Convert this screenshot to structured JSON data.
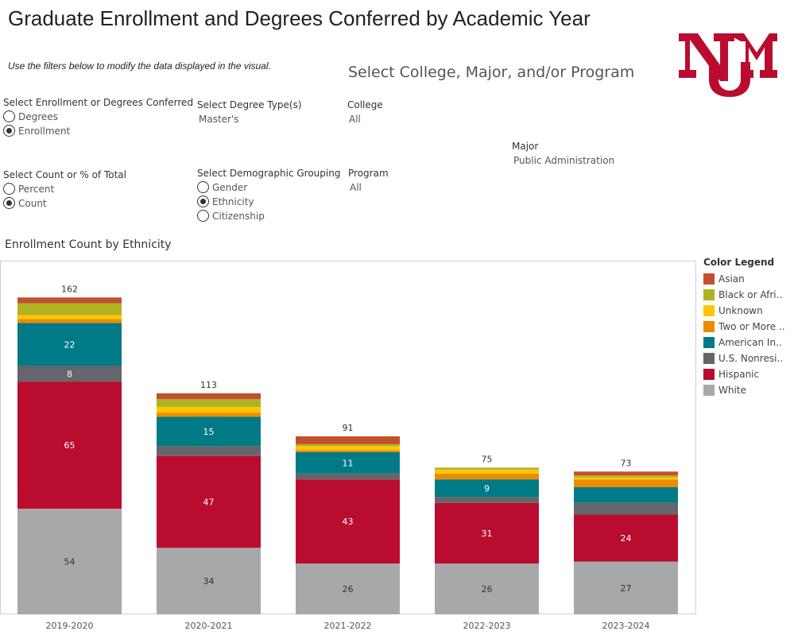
{
  "header": {
    "title": "Graduate Enrollment and Degrees Conferred by Academic Year",
    "instructions": "Use the filters below to modify the data displayed in the visual.",
    "section_heading": "Select College, Major, and/or Program",
    "logo_text": "UNM",
    "brand_color": "#ba0c2f"
  },
  "filters": {
    "enroll_or_degrees": {
      "label": "Select Enrollment or Degrees Conferred",
      "options": [
        {
          "label": "Degrees",
          "selected": false
        },
        {
          "label": "Enrollment",
          "selected": true
        }
      ]
    },
    "count_or_percent": {
      "label": "Select Count or % of Total",
      "options": [
        {
          "label": "Percent",
          "selected": false
        },
        {
          "label": "Count",
          "selected": true
        }
      ]
    },
    "degree_type": {
      "label": "Select Degree Type(s)",
      "value": "Master's"
    },
    "demographic": {
      "label": "Select Demographic Grouping",
      "options": [
        {
          "label": "Gender",
          "selected": false
        },
        {
          "label": "Ethnicity",
          "selected": true
        },
        {
          "label": "Citizenship",
          "selected": false
        }
      ]
    },
    "college": {
      "label": "College",
      "value": "All"
    },
    "major": {
      "label": "Major",
      "value": "Public Administration"
    },
    "program": {
      "label": "Program",
      "value": "All"
    }
  },
  "chart_title": "Enrollment Count by Ethnicity",
  "legend": {
    "title": "Color Legend",
    "items": [
      {
        "label": "Asian",
        "color": "#c1502e"
      },
      {
        "label": "Black or Afri..",
        "color": "#b1b222"
      },
      {
        "label": "Unknown",
        "color": "#ffc600"
      },
      {
        "label": "Two or More ..",
        "color": "#ed8b00"
      },
      {
        "label": "American In..",
        "color": "#007a86"
      },
      {
        "label": "U.S. Nonresi..",
        "color": "#63666a"
      },
      {
        "label": "Hispanic",
        "color": "#ba0c2f"
      },
      {
        "label": "White",
        "color": "#a7a8aa"
      }
    ]
  },
  "chart_data": {
    "type": "bar",
    "stacked": true,
    "categories": [
      "2019-2020",
      "2020-2021",
      "2021-2022",
      "2022-2023",
      "2023-2024"
    ],
    "ylim": [
      0,
      180
    ],
    "totals": [
      162,
      113,
      91,
      75,
      73
    ],
    "series": [
      {
        "name": "White",
        "color": "#a7a8aa",
        "values": [
          54,
          34,
          26,
          26,
          27
        ],
        "labels": [
          "54",
          "34",
          "26",
          "26",
          "27"
        ]
      },
      {
        "name": "Hispanic",
        "color": "#ba0c2f",
        "values": [
          65,
          47,
          43,
          31,
          24
        ],
        "labels": [
          "65",
          "47",
          "43",
          "31",
          "24"
        ]
      },
      {
        "name": "U.S. Nonresi..",
        "color": "#63666a",
        "values": [
          8,
          5,
          3,
          3,
          6
        ],
        "labels": [
          "8",
          "",
          "",
          "",
          ""
        ]
      },
      {
        "name": "American In..",
        "color": "#007a86",
        "values": [
          22,
          15,
          11,
          9,
          8
        ],
        "labels": [
          "22",
          "15",
          "11",
          "9",
          ""
        ]
      },
      {
        "name": "Two or More ..",
        "color": "#ed8b00",
        "values": [
          2,
          2,
          1,
          3,
          4
        ],
        "labels": [
          "",
          "",
          "",
          "",
          ""
        ]
      },
      {
        "name": "Unknown",
        "color": "#ffc600",
        "values": [
          2,
          3,
          2,
          2,
          1
        ],
        "labels": [
          "",
          "",
          "",
          "",
          ""
        ]
      },
      {
        "name": "Black or Afri..",
        "color": "#b1b222",
        "values": [
          6,
          4,
          1,
          1,
          1
        ],
        "labels": [
          "",
          "",
          "",
          "",
          ""
        ]
      },
      {
        "name": "Asian",
        "color": "#c1502e",
        "values": [
          3,
          3,
          4,
          0,
          2
        ],
        "labels": [
          "",
          "",
          "",
          "",
          ""
        ]
      }
    ]
  }
}
